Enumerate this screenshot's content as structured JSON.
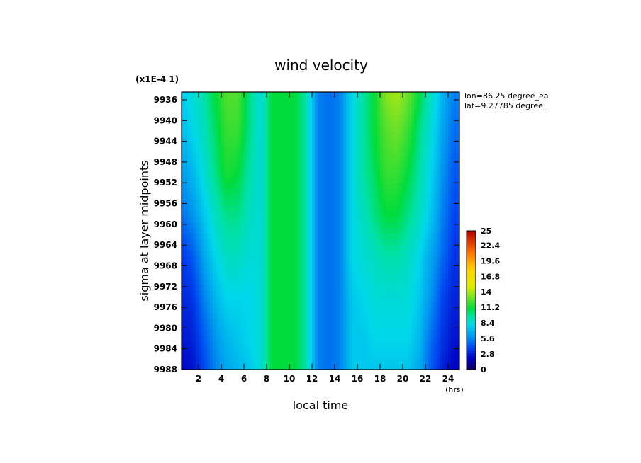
{
  "chart_data": {
    "type": "heatmap",
    "title": "wind velocity",
    "scale_note": "(x1E-4 1)",
    "xlabel": "local time",
    "xunit": "(hrs)",
    "ylabel": "sigma at layer midpoints",
    "annotations": [
      "lon=86.25 degree_ea",
      "lat=9.27785 degree_"
    ],
    "xlim": [
      0.5,
      25
    ],
    "ylim": [
      9934.5,
      9988
    ],
    "x_ticks": [
      2,
      4,
      6,
      8,
      10,
      12,
      14,
      16,
      18,
      20,
      22,
      24
    ],
    "y_ticks": [
      9936,
      9940,
      9944,
      9948,
      9952,
      9956,
      9960,
      9964,
      9968,
      9972,
      9976,
      9980,
      9984,
      9988
    ],
    "x": [
      0.5,
      1.5,
      2.5,
      3.5,
      4.5,
      5.5,
      6.5,
      7.5,
      8.5,
      9.5,
      10.5,
      11.5,
      12.5,
      13.5,
      14.5,
      15.5,
      16.5,
      17.5,
      18.5,
      19.5,
      20.5,
      21.5,
      22.5,
      23.5,
      24.5,
      25.0
    ],
    "y": [
      9934.5,
      9942,
      9950,
      9958,
      9966,
      9974,
      9982,
      9988
    ],
    "values": [
      [
        7.5,
        8.5,
        9.5,
        11,
        12.5,
        12.5,
        10,
        8.5,
        11,
        11,
        11,
        9.5,
        5.5,
        5,
        5.5,
        8,
        9.5,
        11,
        13.5,
        14,
        13,
        11,
        9,
        7,
        5.5,
        5.5
      ],
      [
        7,
        8,
        9,
        10.5,
        12,
        12,
        10,
        8.5,
        11,
        11,
        11,
        9.5,
        5.5,
        5,
        5.5,
        8,
        9.5,
        11,
        12.5,
        13,
        12,
        10,
        8.5,
        6.5,
        5,
        5
      ],
      [
        6,
        7,
        8.5,
        10,
        11.5,
        11,
        9.5,
        8.5,
        11,
        11,
        11,
        9.5,
        5.5,
        5,
        5.5,
        8,
        9.5,
        10.5,
        12,
        12,
        11,
        9.5,
        8,
        6,
        4.5,
        4.5
      ],
      [
        5,
        6,
        7.5,
        9,
        10,
        10,
        9,
        8.5,
        11,
        11,
        11,
        9.5,
        5.5,
        5,
        5.5,
        8,
        9,
        10,
        11,
        11,
        10,
        9,
        7.5,
        5.5,
        4,
        4
      ],
      [
        3.5,
        4.5,
        6.5,
        8,
        9,
        9,
        8.5,
        8.5,
        11,
        11,
        11,
        9.5,
        5.5,
        5,
        5.5,
        8,
        8.5,
        9,
        9.5,
        9.5,
        9,
        8,
        6.5,
        5,
        3.5,
        3.5
      ],
      [
        3,
        3.5,
        5.5,
        7,
        8,
        8,
        8,
        8.5,
        11,
        11,
        11,
        9.5,
        5.5,
        5,
        5.5,
        7.5,
        8,
        8.5,
        8.5,
        8.5,
        8.5,
        7.5,
        6,
        4,
        3,
        3
      ],
      [
        2.5,
        3,
        4.5,
        6,
        7,
        7.5,
        8,
        8.5,
        11,
        11,
        11,
        9.5,
        5.5,
        5,
        5.5,
        7.5,
        7.5,
        8,
        8,
        8,
        8,
        7,
        5,
        3.5,
        2.5,
        2.5
      ],
      [
        2,
        2.5,
        4,
        5.5,
        6.5,
        7,
        7.5,
        8.5,
        11,
        11,
        11,
        9.5,
        5.5,
        5,
        5.5,
        7.5,
        7.5,
        7.5,
        7.5,
        7.5,
        7.5,
        6.5,
        4.5,
        3,
        2,
        2
      ]
    ],
    "colorbar": {
      "min": 0,
      "max": 25,
      "tick_labels": [
        "0",
        "2.8",
        "5.6",
        "8.4",
        "11.2",
        "14",
        "16.8",
        "19.6",
        "22.4",
        "25"
      ]
    }
  }
}
